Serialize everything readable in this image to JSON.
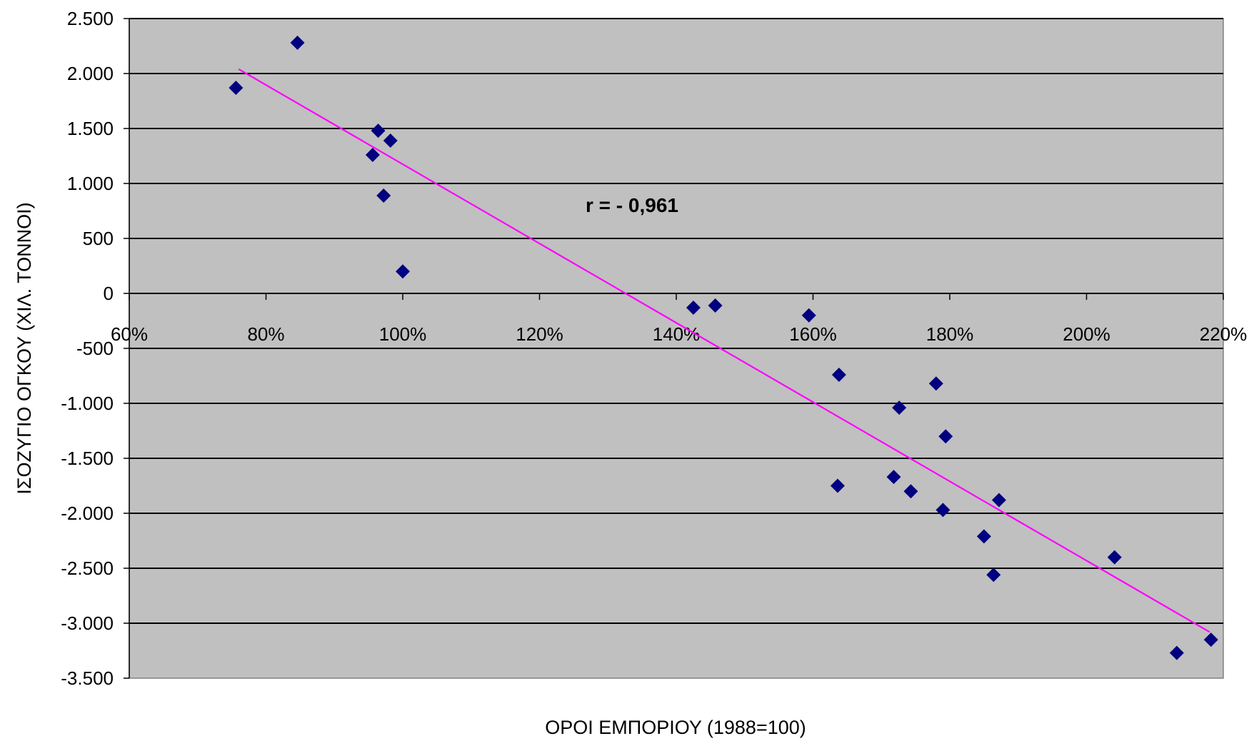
{
  "chart_data": {
    "type": "scatter",
    "title": "",
    "xlabel": "ΟΡΟΙ ΕΜΠΟΡΙΟΥ (1988=100)",
    "ylabel": "ΙΣΟΖΥΓΙΟ ΟΓΚΟΥ (ΧΙΛ. ΤΟΝΝΟΙ)",
    "xlim": [
      60,
      220
    ],
    "ylim": [
      -3500,
      2500
    ],
    "x_ticks": [
      60,
      80,
      100,
      120,
      140,
      160,
      180,
      200,
      220
    ],
    "x_tick_labels": [
      "60%",
      "80%",
      "100%",
      "120%",
      "140%",
      "160%",
      "180%",
      "200%",
      "220%"
    ],
    "y_ticks": [
      2500,
      2000,
      1500,
      1000,
      500,
      0,
      -500,
      -1000,
      -1500,
      -2000,
      -2500,
      -3000,
      -3500
    ],
    "y_tick_labels": [
      "2.500",
      "2.000",
      "1.500",
      "1.000",
      "500",
      "0",
      "-500",
      "-1.000",
      "-1.500",
      "-2.000",
      "-2.500",
      "-3.000",
      "-3.500"
    ],
    "grid": true,
    "plot_background": "#c0c0c0",
    "marker_color": "#000080",
    "trendline_color": "#ff00ff",
    "annotation": "r = - 0,961",
    "series": [
      {
        "points": [
          [
            75.6,
            1870
          ],
          [
            84.6,
            2280
          ],
          [
            95.6,
            1260
          ],
          [
            96.4,
            1480
          ],
          [
            97.2,
            890
          ],
          [
            98.2,
            1390
          ],
          [
            100.0,
            200
          ],
          [
            142.5,
            -130
          ],
          [
            145.7,
            -110
          ],
          [
            159.4,
            -200
          ],
          [
            163.8,
            -740
          ],
          [
            163.6,
            -1750
          ],
          [
            171.8,
            -1670
          ],
          [
            172.6,
            -1040
          ],
          [
            174.3,
            -1800
          ],
          [
            178.0,
            -820
          ],
          [
            179.0,
            -1970
          ],
          [
            179.4,
            -1300
          ],
          [
            185.0,
            -2210
          ],
          [
            186.4,
            -2560
          ],
          [
            187.2,
            -1880
          ],
          [
            204.1,
            -2400
          ],
          [
            213.2,
            -3270
          ],
          [
            218.2,
            -3150
          ]
        ]
      }
    ],
    "trendline": {
      "x_start": 76,
      "y_start": 2040,
      "x_end": 218,
      "y_end": -3080
    }
  }
}
